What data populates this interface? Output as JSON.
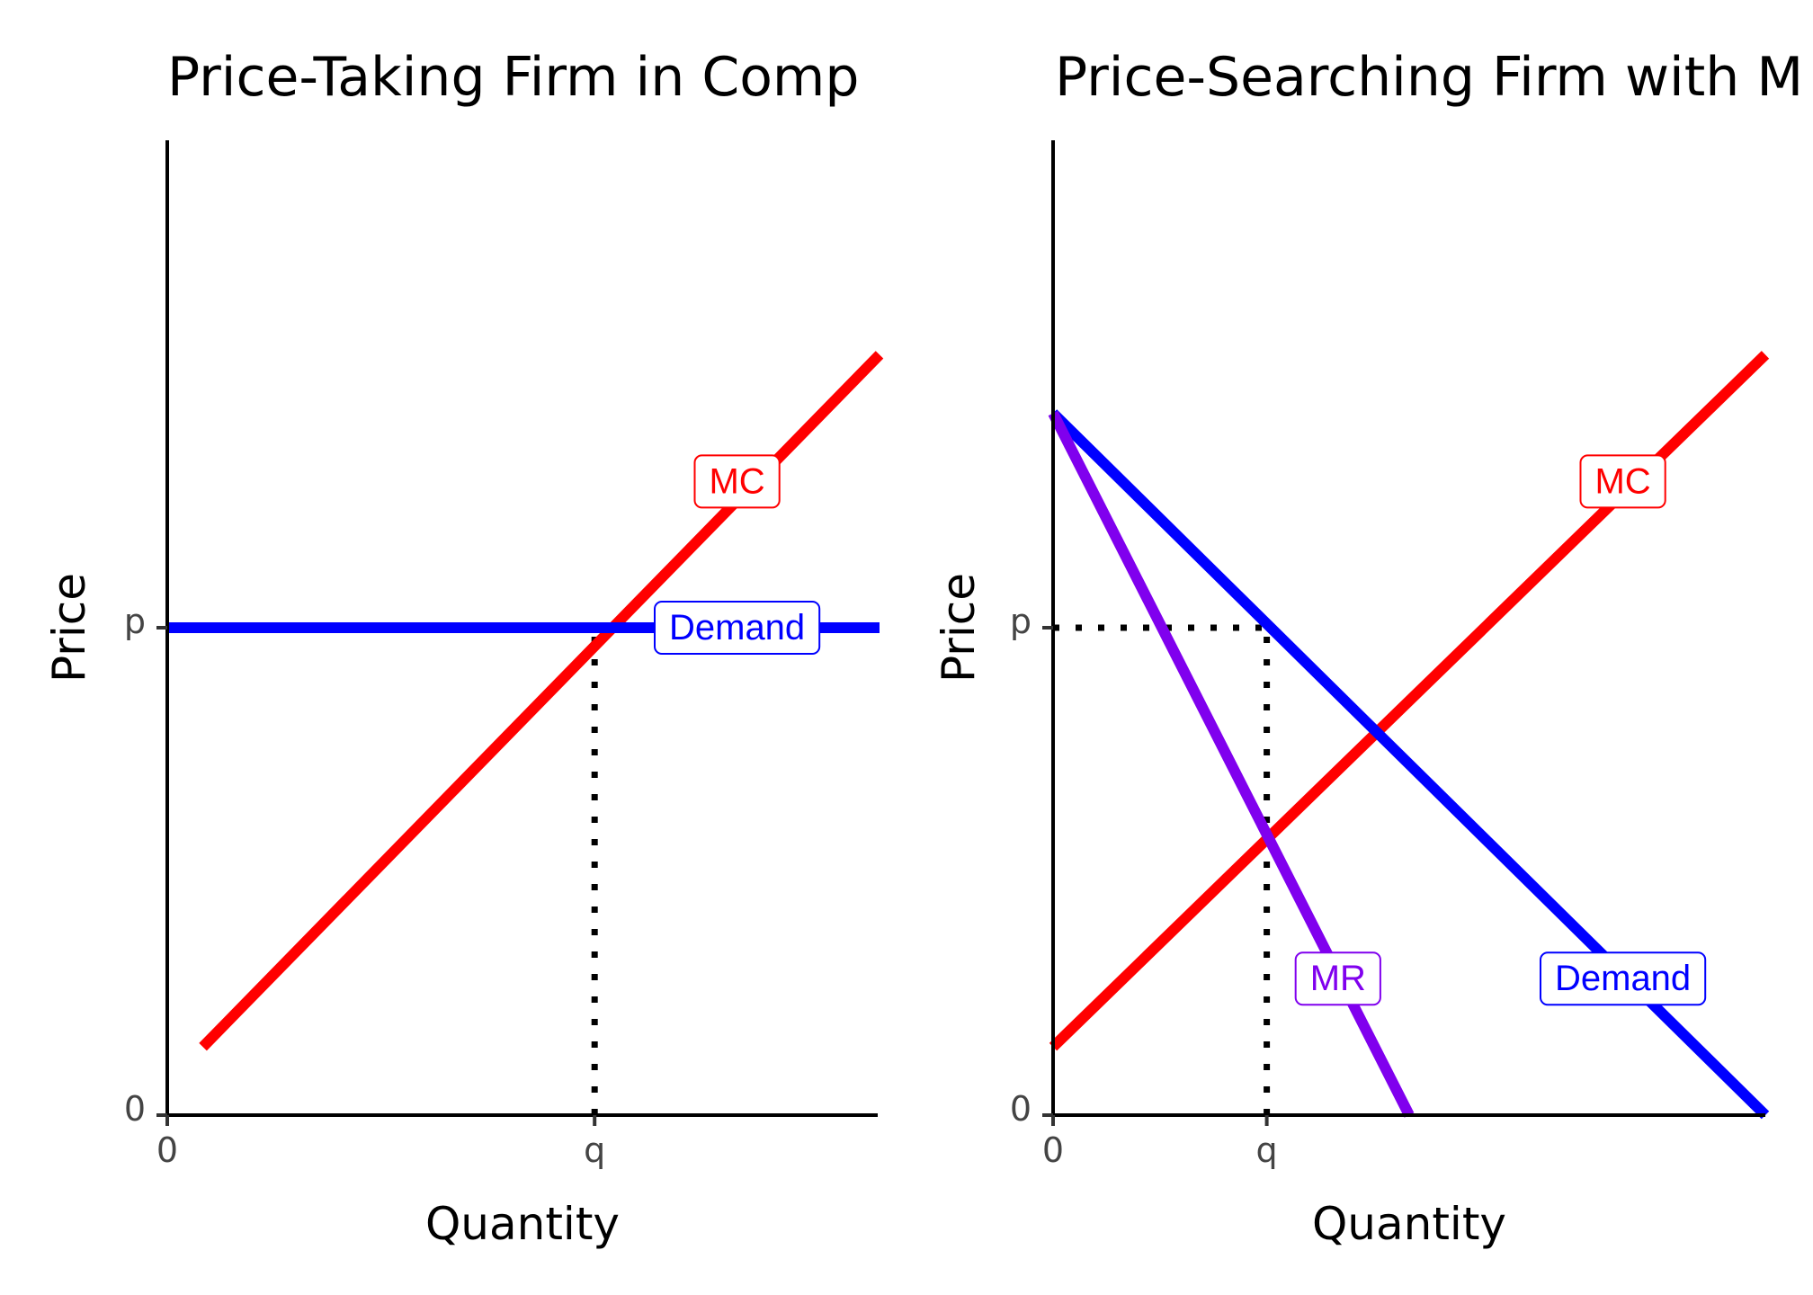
{
  "chart_data": [
    {
      "type": "line",
      "title": "Price-Taking Firm in Comp",
      "xlabel": "Quantity",
      "ylabel": "Price",
      "xlim": [
        0,
        10
      ],
      "ylim": [
        0,
        10
      ],
      "x_ticks": [
        {
          "value": 0,
          "label": "0"
        },
        {
          "value": 6,
          "label": "q"
        }
      ],
      "y_ticks": [
        {
          "value": 0,
          "label": "0"
        },
        {
          "value": 5,
          "label": "p"
        }
      ],
      "series": [
        {
          "name": "MC",
          "color": "#ff0000",
          "x": [
            0.5,
            10
          ],
          "y": [
            0.7,
            7.8
          ],
          "label_at": [
            8,
            6.5
          ]
        },
        {
          "name": "Demand",
          "color": "#0000ff",
          "x": [
            0,
            10
          ],
          "y": [
            5,
            5
          ],
          "label_at": [
            8,
            5
          ]
        }
      ],
      "guides": [
        {
          "x": [
            6,
            6
          ],
          "y": [
            0,
            5
          ]
        }
      ],
      "grid": false,
      "legend": "none"
    },
    {
      "type": "line",
      "title": "Price-Searching Firm with M",
      "xlabel": "Quantity",
      "ylabel": "Price",
      "xlim": [
        0,
        10
      ],
      "ylim": [
        0,
        10
      ],
      "x_ticks": [
        {
          "value": 0,
          "label": "0"
        },
        {
          "value": 3,
          "label": "q"
        }
      ],
      "y_ticks": [
        {
          "value": 0,
          "label": "0"
        },
        {
          "value": 5,
          "label": "p"
        }
      ],
      "series": [
        {
          "name": "MC",
          "color": "#ff0000",
          "x": [
            0,
            10
          ],
          "y": [
            0.7,
            7.8
          ],
          "label_at": [
            8,
            6.5
          ]
        },
        {
          "name": "Demand",
          "color": "#0000ff",
          "x": [
            0,
            10
          ],
          "y": [
            7.2,
            0
          ],
          "label_at": [
            8,
            1.4
          ]
        },
        {
          "name": "MR",
          "color": "#8000ee",
          "x": [
            0,
            5
          ],
          "y": [
            7.2,
            0
          ],
          "label_at": [
            4,
            1.4
          ]
        }
      ],
      "guides": [
        {
          "x": [
            0,
            3
          ],
          "y": [
            5,
            5
          ]
        },
        {
          "x": [
            3,
            3
          ],
          "y": [
            0,
            5
          ]
        }
      ],
      "grid": false,
      "legend": "none"
    }
  ]
}
